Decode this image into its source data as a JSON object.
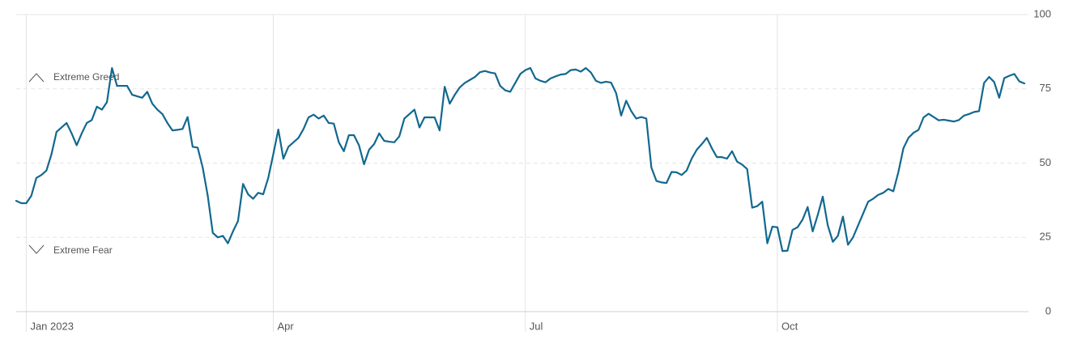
{
  "chart_data": {
    "type": "line",
    "annotations": [
      {
        "text": "Extreme Greed"
      },
      {
        "text": "Extreme Fear"
      }
    ],
    "categories": [
      null,
      null,
      "Jan 2023",
      null,
      null,
      null,
      null,
      null,
      null,
      null,
      null,
      null,
      null,
      null,
      null,
      null,
      null,
      null,
      null,
      null,
      null,
      null,
      null,
      null,
      null,
      null,
      null,
      null,
      null,
      null,
      null,
      null,
      null,
      null,
      null,
      null,
      null,
      null,
      null,
      null,
      null,
      null,
      null,
      null,
      null,
      null,
      null,
      null,
      null,
      null,
      null,
      "Apr",
      null,
      null,
      null,
      null,
      null,
      null,
      null,
      null,
      null,
      null,
      null,
      null,
      null,
      null,
      null,
      null,
      null,
      null,
      null,
      null,
      null,
      null,
      null,
      null,
      null,
      null,
      null,
      null,
      null,
      null,
      null,
      null,
      null,
      null,
      null,
      null,
      null,
      null,
      null,
      null,
      null,
      null,
      null,
      null,
      null,
      null,
      null,
      null,
      null,
      "Jul",
      null,
      null,
      null,
      null,
      null,
      null,
      null,
      null,
      null,
      null,
      null,
      null,
      null,
      null,
      null,
      null,
      null,
      null,
      null,
      null,
      null,
      null,
      null,
      null,
      null,
      null,
      null,
      null,
      null,
      null,
      null,
      null,
      null,
      null,
      null,
      null,
      null,
      null,
      null,
      null,
      null,
      null,
      null,
      null,
      null,
      null,
      null,
      null,
      null,
      "Oct",
      null,
      null,
      null,
      null,
      null,
      null,
      null,
      null,
      null,
      null,
      null,
      null,
      null,
      null,
      null,
      null,
      null,
      null,
      null,
      null,
      null,
      null,
      null,
      null,
      null,
      null,
      null,
      null,
      null,
      null,
      null,
      null,
      null,
      null,
      null,
      null,
      null,
      null,
      null,
      null,
      null,
      null,
      null,
      null,
      null,
      null,
      null,
      null,
      null
    ],
    "values": [
      37.3,
      36.5,
      36.5,
      39,
      45,
      46,
      47.5,
      53,
      60.5,
      62,
      63.5,
      60,
      56,
      60,
      63.5,
      64.5,
      69,
      68,
      70.5,
      82,
      76,
      76,
      76,
      73,
      72.5,
      72,
      74,
      70,
      68,
      66.5,
      63.5,
      61,
      61.2,
      61.5,
      65.5,
      55.5,
      55.2,
      48.5,
      39,
      26.5,
      25,
      25.5,
      23,
      27,
      30.5,
      43,
      39.5,
      38,
      40,
      39.5,
      45,
      53,
      61.3,
      51.5,
      55.5,
      57,
      58.5,
      61.5,
      65.4,
      66.3,
      65,
      66,
      63.5,
      63.3,
      57,
      54,
      59.4,
      59.4,
      56,
      49.6,
      54.5,
      56.4,
      60,
      57.5,
      57.2,
      57,
      59,
      65,
      66.5,
      68,
      62,
      65.4,
      65.4,
      65.4,
      61,
      75.7,
      70,
      73,
      75.5,
      77,
      78,
      79,
      80.6,
      81,
      80.5,
      80.2,
      76,
      74.5,
      74,
      77,
      80,
      81.3,
      82,
      78.5,
      77.7,
      77.2,
      78.5,
      79.2,
      79.8,
      80,
      81.3,
      81.5,
      80.8,
      82,
      80.5,
      77.7,
      77,
      77.4,
      77.1,
      73.6,
      66,
      71,
      67.5,
      65,
      65.5,
      65,
      48.5,
      44,
      43.5,
      43.3,
      47,
      46.9,
      46,
      47.5,
      51.5,
      54.5,
      56.4,
      58.5,
      55,
      52,
      52,
      51.5,
      54,
      50.5,
      49.5,
      48,
      35,
      35.5,
      37,
      23,
      28.6,
      28.4,
      20.4,
      20.5,
      27.5,
      28.4,
      31,
      35.2,
      27,
      32.5,
      38.7,
      29,
      23.5,
      25.5,
      32,
      22.5,
      25,
      29,
      33,
      37,
      38,
      39.3,
      40,
      41.3,
      40.5,
      47,
      55,
      58.5,
      60.2,
      61.2,
      65.4,
      66.6,
      65.5,
      64.4,
      64.6,
      64.3,
      64,
      64.5,
      66,
      66.5,
      67.2,
      67.5,
      77,
      79,
      77.3,
      72,
      78.6,
      79.4,
      80,
      77.5,
      76.8
    ],
    "color": "#12688f",
    "ylim": [
      0,
      100
    ],
    "yticks": [
      0,
      25,
      50,
      75,
      100
    ],
    "grid": true
  }
}
